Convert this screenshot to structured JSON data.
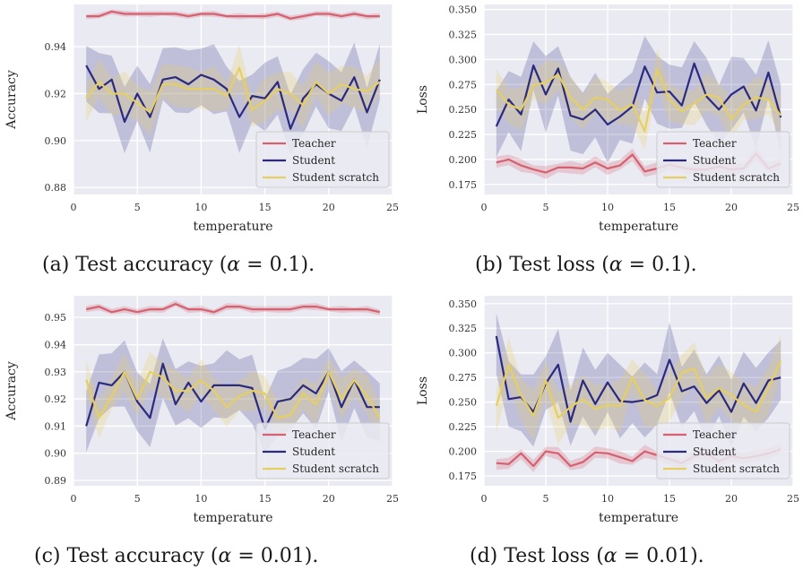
{
  "colors": {
    "Teacher": "#D5606F",
    "Student": "#2B2A7E",
    "Student scratch": "#E6CF62"
  },
  "chart_data": [
    {
      "type": "line",
      "caption_prefix": "(a) Test accuracy (",
      "caption_alpha": "= 0.1).",
      "xlabel": "temperature",
      "ylabel": "Accuracy",
      "xlim": [
        0,
        25
      ],
      "ylim": [
        0.877,
        0.958
      ],
      "xticks": [
        0,
        5,
        10,
        15,
        20,
        25
      ],
      "yticks": [
        0.88,
        0.9,
        0.92,
        0.94
      ],
      "ytick_labels": [
        "0.88",
        "0.90",
        "0.92",
        "0.94"
      ],
      "legend": "lower-right",
      "x": [
        1,
        2,
        3,
        4,
        5,
        6,
        7,
        8,
        9,
        10,
        11,
        12,
        13,
        14,
        15,
        16,
        17,
        18,
        19,
        20,
        21,
        22,
        23,
        24
      ],
      "series": [
        {
          "name": "Teacher",
          "values": [
            0.953,
            0.953,
            0.955,
            0.954,
            0.954,
            0.954,
            0.954,
            0.954,
            0.953,
            0.954,
            0.954,
            0.953,
            0.953,
            0.953,
            0.953,
            0.954,
            0.952,
            0.953,
            0.954,
            0.954,
            0.953,
            0.954,
            0.953,
            0.953
          ],
          "band": 0.0012
        },
        {
          "name": "Student",
          "values": [
            0.932,
            0.922,
            0.926,
            0.908,
            0.92,
            0.91,
            0.926,
            0.927,
            0.924,
            0.928,
            0.926,
            0.922,
            0.91,
            0.919,
            0.918,
            0.925,
            0.905,
            0.918,
            0.924,
            0.92,
            0.917,
            0.927,
            0.912,
            0.926
          ],
          "band": 0.014
        },
        {
          "name": "Student scratch",
          "values": [
            0.918,
            0.925,
            0.92,
            0.92,
            0.916,
            0.912,
            0.924,
            0.924,
            0.922,
            0.922,
            0.922,
            0.919,
            0.931,
            0.913,
            0.917,
            0.922,
            0.92,
            0.915,
            0.925,
            0.92,
            0.924,
            0.922,
            0.921,
            0.925
          ],
          "band": 0.009
        }
      ]
    },
    {
      "type": "line",
      "caption_prefix": "(b) Test loss (",
      "caption_alpha": "= 0.1).",
      "xlabel": "temperature",
      "ylabel": "Loss",
      "xlim": [
        0,
        25
      ],
      "ylim": [
        0.165,
        0.355
      ],
      "xticks": [
        0,
        5,
        10,
        15,
        20,
        25
      ],
      "yticks": [
        0.175,
        0.2,
        0.225,
        0.25,
        0.275,
        0.3,
        0.325,
        0.35
      ],
      "ytick_labels": [
        "0.175",
        "0.200",
        "0.225",
        "0.250",
        "0.275",
        "0.300",
        "0.325",
        "0.350"
      ],
      "legend": "lower-right",
      "x": [
        1,
        2,
        3,
        4,
        5,
        6,
        7,
        8,
        9,
        10,
        11,
        12,
        13,
        14,
        15,
        16,
        17,
        18,
        19,
        20,
        21,
        22,
        23,
        24
      ],
      "series": [
        {
          "name": "Teacher",
          "values": [
            0.197,
            0.2,
            0.194,
            0.19,
            0.187,
            0.192,
            0.192,
            0.191,
            0.197,
            0.191,
            0.194,
            0.205,
            0.188,
            0.191,
            0.195,
            0.192,
            0.19,
            0.19,
            0.193,
            0.19,
            0.191,
            0.206,
            0.191,
            0.196
          ],
          "band": 0.006
        },
        {
          "name": "Student",
          "values": [
            0.233,
            0.26,
            0.245,
            0.294,
            0.265,
            0.291,
            0.244,
            0.24,
            0.25,
            0.235,
            0.243,
            0.253,
            0.293,
            0.267,
            0.268,
            0.254,
            0.296,
            0.263,
            0.25,
            0.265,
            0.273,
            0.249,
            0.287,
            0.242
          ],
          "band": 0.035
        },
        {
          "name": "Student scratch",
          "values": [
            0.27,
            0.255,
            0.25,
            0.274,
            0.277,
            0.285,
            0.262,
            0.25,
            0.262,
            0.26,
            0.249,
            0.255,
            0.228,
            0.29,
            0.26,
            0.248,
            0.256,
            0.265,
            0.262,
            0.24,
            0.255,
            0.262,
            0.26,
            0.244
          ],
          "band": 0.02
        }
      ]
    },
    {
      "type": "line",
      "caption_prefix": "(c) Test accuracy (",
      "caption_alpha": "= 0.01).",
      "xlabel": "temperature",
      "ylabel": "Accuracy",
      "xlim": [
        0,
        25
      ],
      "ylim": [
        0.888,
        0.958
      ],
      "xticks": [
        0,
        5,
        10,
        15,
        20,
        25
      ],
      "yticks": [
        0.89,
        0.9,
        0.91,
        0.92,
        0.93,
        0.94,
        0.95
      ],
      "ytick_labels": [
        "0.89",
        "0.90",
        "0.91",
        "0.92",
        "0.93",
        "0.94",
        "0.95"
      ],
      "legend": "lower-right",
      "x": [
        1,
        2,
        3,
        4,
        5,
        6,
        7,
        8,
        9,
        10,
        11,
        12,
        13,
        14,
        15,
        16,
        17,
        18,
        19,
        20,
        21,
        22,
        23,
        24
      ],
      "series": [
        {
          "name": "Teacher",
          "values": [
            0.953,
            0.954,
            0.952,
            0.953,
            0.952,
            0.953,
            0.953,
            0.955,
            0.953,
            0.953,
            0.952,
            0.954,
            0.954,
            0.953,
            0.953,
            0.953,
            0.953,
            0.954,
            0.954,
            0.953,
            0.953,
            0.953,
            0.953,
            0.952
          ],
          "band": 0.0012
        },
        {
          "name": "Student",
          "values": [
            0.91,
            0.926,
            0.925,
            0.93,
            0.919,
            0.913,
            0.933,
            0.918,
            0.926,
            0.919,
            0.925,
            0.925,
            0.925,
            0.924,
            0.909,
            0.919,
            0.92,
            0.925,
            0.922,
            0.93,
            0.917,
            0.927,
            0.917,
            0.917
          ],
          "band": 0.012
        },
        {
          "name": "Student scratch",
          "values": [
            0.927,
            0.913,
            0.921,
            0.93,
            0.92,
            0.93,
            0.928,
            0.923,
            0.923,
            0.927,
            0.923,
            0.917,
            0.921,
            0.923,
            0.922,
            0.913,
            0.914,
            0.922,
            0.918,
            0.93,
            0.92,
            0.927,
            0.921,
            0.913
          ],
          "band": 0.007
        }
      ]
    },
    {
      "type": "line",
      "caption_prefix": "(d) Test loss (",
      "caption_alpha": "= 0.01).",
      "xlabel": "temperature",
      "ylabel": "Loss",
      "xlim": [
        0,
        25
      ],
      "ylim": [
        0.165,
        0.358
      ],
      "xticks": [
        0,
        5,
        10,
        15,
        20,
        25
      ],
      "yticks": [
        0.175,
        0.2,
        0.225,
        0.25,
        0.275,
        0.3,
        0.325,
        0.35
      ],
      "ytick_labels": [
        "0.175",
        "0.200",
        "0.225",
        "0.250",
        "0.275",
        "0.300",
        "0.325",
        "0.350"
      ],
      "legend": "lower-right",
      "x": [
        1,
        2,
        3,
        4,
        5,
        6,
        7,
        8,
        9,
        10,
        11,
        12,
        13,
        14,
        15,
        16,
        17,
        18,
        19,
        20,
        21,
        22,
        23,
        24
      ],
      "series": [
        {
          "name": "Teacher",
          "values": [
            0.188,
            0.187,
            0.198,
            0.185,
            0.2,
            0.198,
            0.185,
            0.189,
            0.199,
            0.198,
            0.194,
            0.19,
            0.2,
            0.196,
            0.192,
            0.188,
            0.195,
            0.198,
            0.19,
            0.195,
            0.193,
            0.195,
            0.198,
            0.202
          ],
          "band": 0.006
        },
        {
          "name": "Student",
          "values": [
            0.317,
            0.253,
            0.255,
            0.24,
            0.269,
            0.288,
            0.23,
            0.272,
            0.248,
            0.27,
            0.251,
            0.25,
            0.252,
            0.257,
            0.293,
            0.261,
            0.266,
            0.249,
            0.262,
            0.24,
            0.269,
            0.249,
            0.272,
            0.275
          ],
          "band": 0.035
        },
        {
          "name": "Student scratch",
          "values": [
            0.246,
            0.288,
            0.257,
            0.236,
            0.272,
            0.234,
            0.245,
            0.253,
            0.243,
            0.247,
            0.246,
            0.275,
            0.252,
            0.246,
            0.254,
            0.28,
            0.284,
            0.254,
            0.264,
            0.257,
            0.247,
            0.24,
            0.265,
            0.292
          ],
          "band": 0.025
        }
      ]
    }
  ]
}
